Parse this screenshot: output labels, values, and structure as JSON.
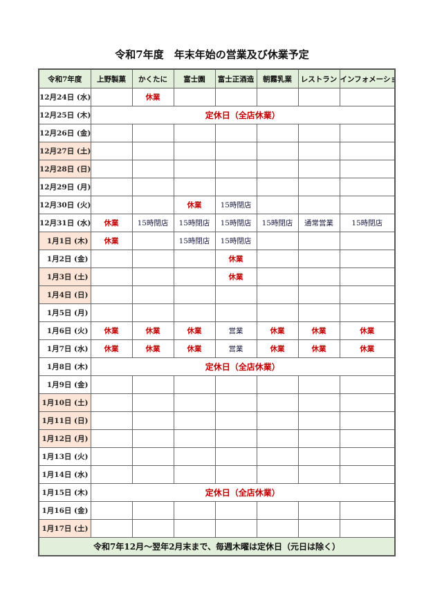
{
  "title": "令和7年度　年末年始の営業及び休業予定",
  "colors": {
    "header_bg": "#e2efda",
    "weekend_bg": "#fce4d6",
    "closed_text": "#c00000"
  },
  "headers": [
    "令和7年度",
    "上野製菓",
    "かくたに",
    "富士園",
    "富士正酒造",
    "朝霧乳業",
    "レストラン",
    "インフォメーション"
  ],
  "rows": [
    {
      "date": "12月24日 (水)",
      "weekend": false,
      "cells": [
        "",
        "休業",
        "",
        "",
        "",
        "",
        ""
      ]
    },
    {
      "date": "12月25日 (木)",
      "weekend": false,
      "span": "定休日（全店休業）"
    },
    {
      "date": "12月26日 (金)",
      "weekend": false,
      "cells": [
        "",
        "",
        "",
        "",
        "",
        "",
        ""
      ]
    },
    {
      "date": "12月27日 (土)",
      "weekend": true,
      "cells": [
        "",
        "",
        "",
        "",
        "",
        "",
        ""
      ]
    },
    {
      "date": "12月28日 (日)",
      "weekend": true,
      "cells": [
        "",
        "",
        "",
        "",
        "",
        "",
        ""
      ]
    },
    {
      "date": "12月29日 (月)",
      "weekend": false,
      "cells": [
        "",
        "",
        "",
        "",
        "",
        "",
        ""
      ]
    },
    {
      "date": "12月30日 (火)",
      "weekend": false,
      "cells": [
        "",
        "",
        "休業",
        "15時閉店",
        "",
        "",
        ""
      ]
    },
    {
      "date": "12月31日 (水)",
      "weekend": false,
      "cells": [
        "休業",
        "15時閉店",
        "15時閉店",
        "15時閉店",
        "15時閉店",
        "通常営業",
        "15時閉店"
      ]
    },
    {
      "date": "1月1日 (木)",
      "weekend": true,
      "cells": [
        "休業",
        "",
        "15時閉店",
        "15時閉店",
        "",
        "",
        ""
      ]
    },
    {
      "date": "1月2日 (金)",
      "weekend": false,
      "cells": [
        "",
        "",
        "",
        "休業",
        "",
        "",
        ""
      ]
    },
    {
      "date": "1月3日 (土)",
      "weekend": true,
      "cells": [
        "",
        "",
        "",
        "休業",
        "",
        "",
        ""
      ]
    },
    {
      "date": "1月4日 (日)",
      "weekend": true,
      "cells": [
        "",
        "",
        "",
        "",
        "",
        "",
        ""
      ]
    },
    {
      "date": "1月5日 (月)",
      "weekend": false,
      "cells": [
        "",
        "",
        "",
        "",
        "",
        "",
        ""
      ]
    },
    {
      "date": "1月6日 (火)",
      "weekend": false,
      "cells": [
        "休業",
        "休業",
        "休業",
        "営業",
        "休業",
        "休業",
        "休業"
      ]
    },
    {
      "date": "1月7日 (水)",
      "weekend": false,
      "cells": [
        "休業",
        "休業",
        "休業",
        "営業",
        "休業",
        "休業",
        "休業"
      ]
    },
    {
      "date": "1月8日 (木)",
      "weekend": false,
      "span": "定休日（全店休業）"
    },
    {
      "date": "1月9日 (金)",
      "weekend": false,
      "cells": [
        "",
        "",
        "",
        "",
        "",
        "",
        ""
      ]
    },
    {
      "date": "1月10日 (土)",
      "weekend": true,
      "cells": [
        "",
        "",
        "",
        "",
        "",
        "",
        ""
      ]
    },
    {
      "date": "1月11日 (日)",
      "weekend": true,
      "cells": [
        "",
        "",
        "",
        "",
        "",
        "",
        ""
      ]
    },
    {
      "date": "1月12日 (月)",
      "weekend": true,
      "cells": [
        "",
        "",
        "",
        "",
        "",
        "",
        ""
      ]
    },
    {
      "date": "1月13日 (火)",
      "weekend": false,
      "cells": [
        "",
        "",
        "",
        "",
        "",
        "",
        ""
      ]
    },
    {
      "date": "1月14日 (水)",
      "weekend": false,
      "cells": [
        "",
        "",
        "",
        "",
        "",
        "",
        ""
      ]
    },
    {
      "date": "1月15日 (木)",
      "weekend": false,
      "span": "定休日（全店休業）"
    },
    {
      "date": "1月16日 (金)",
      "weekend": false,
      "cells": [
        "",
        "",
        "",
        "",
        "",
        "",
        ""
      ]
    },
    {
      "date": "1月17日 (土)",
      "weekend": true,
      "cells": [
        "",
        "",
        "",
        "",
        "",
        "",
        ""
      ]
    }
  ],
  "footer": "令和7年12月～翌年2月末まで、毎週木曜は定休日（元日は除く）"
}
